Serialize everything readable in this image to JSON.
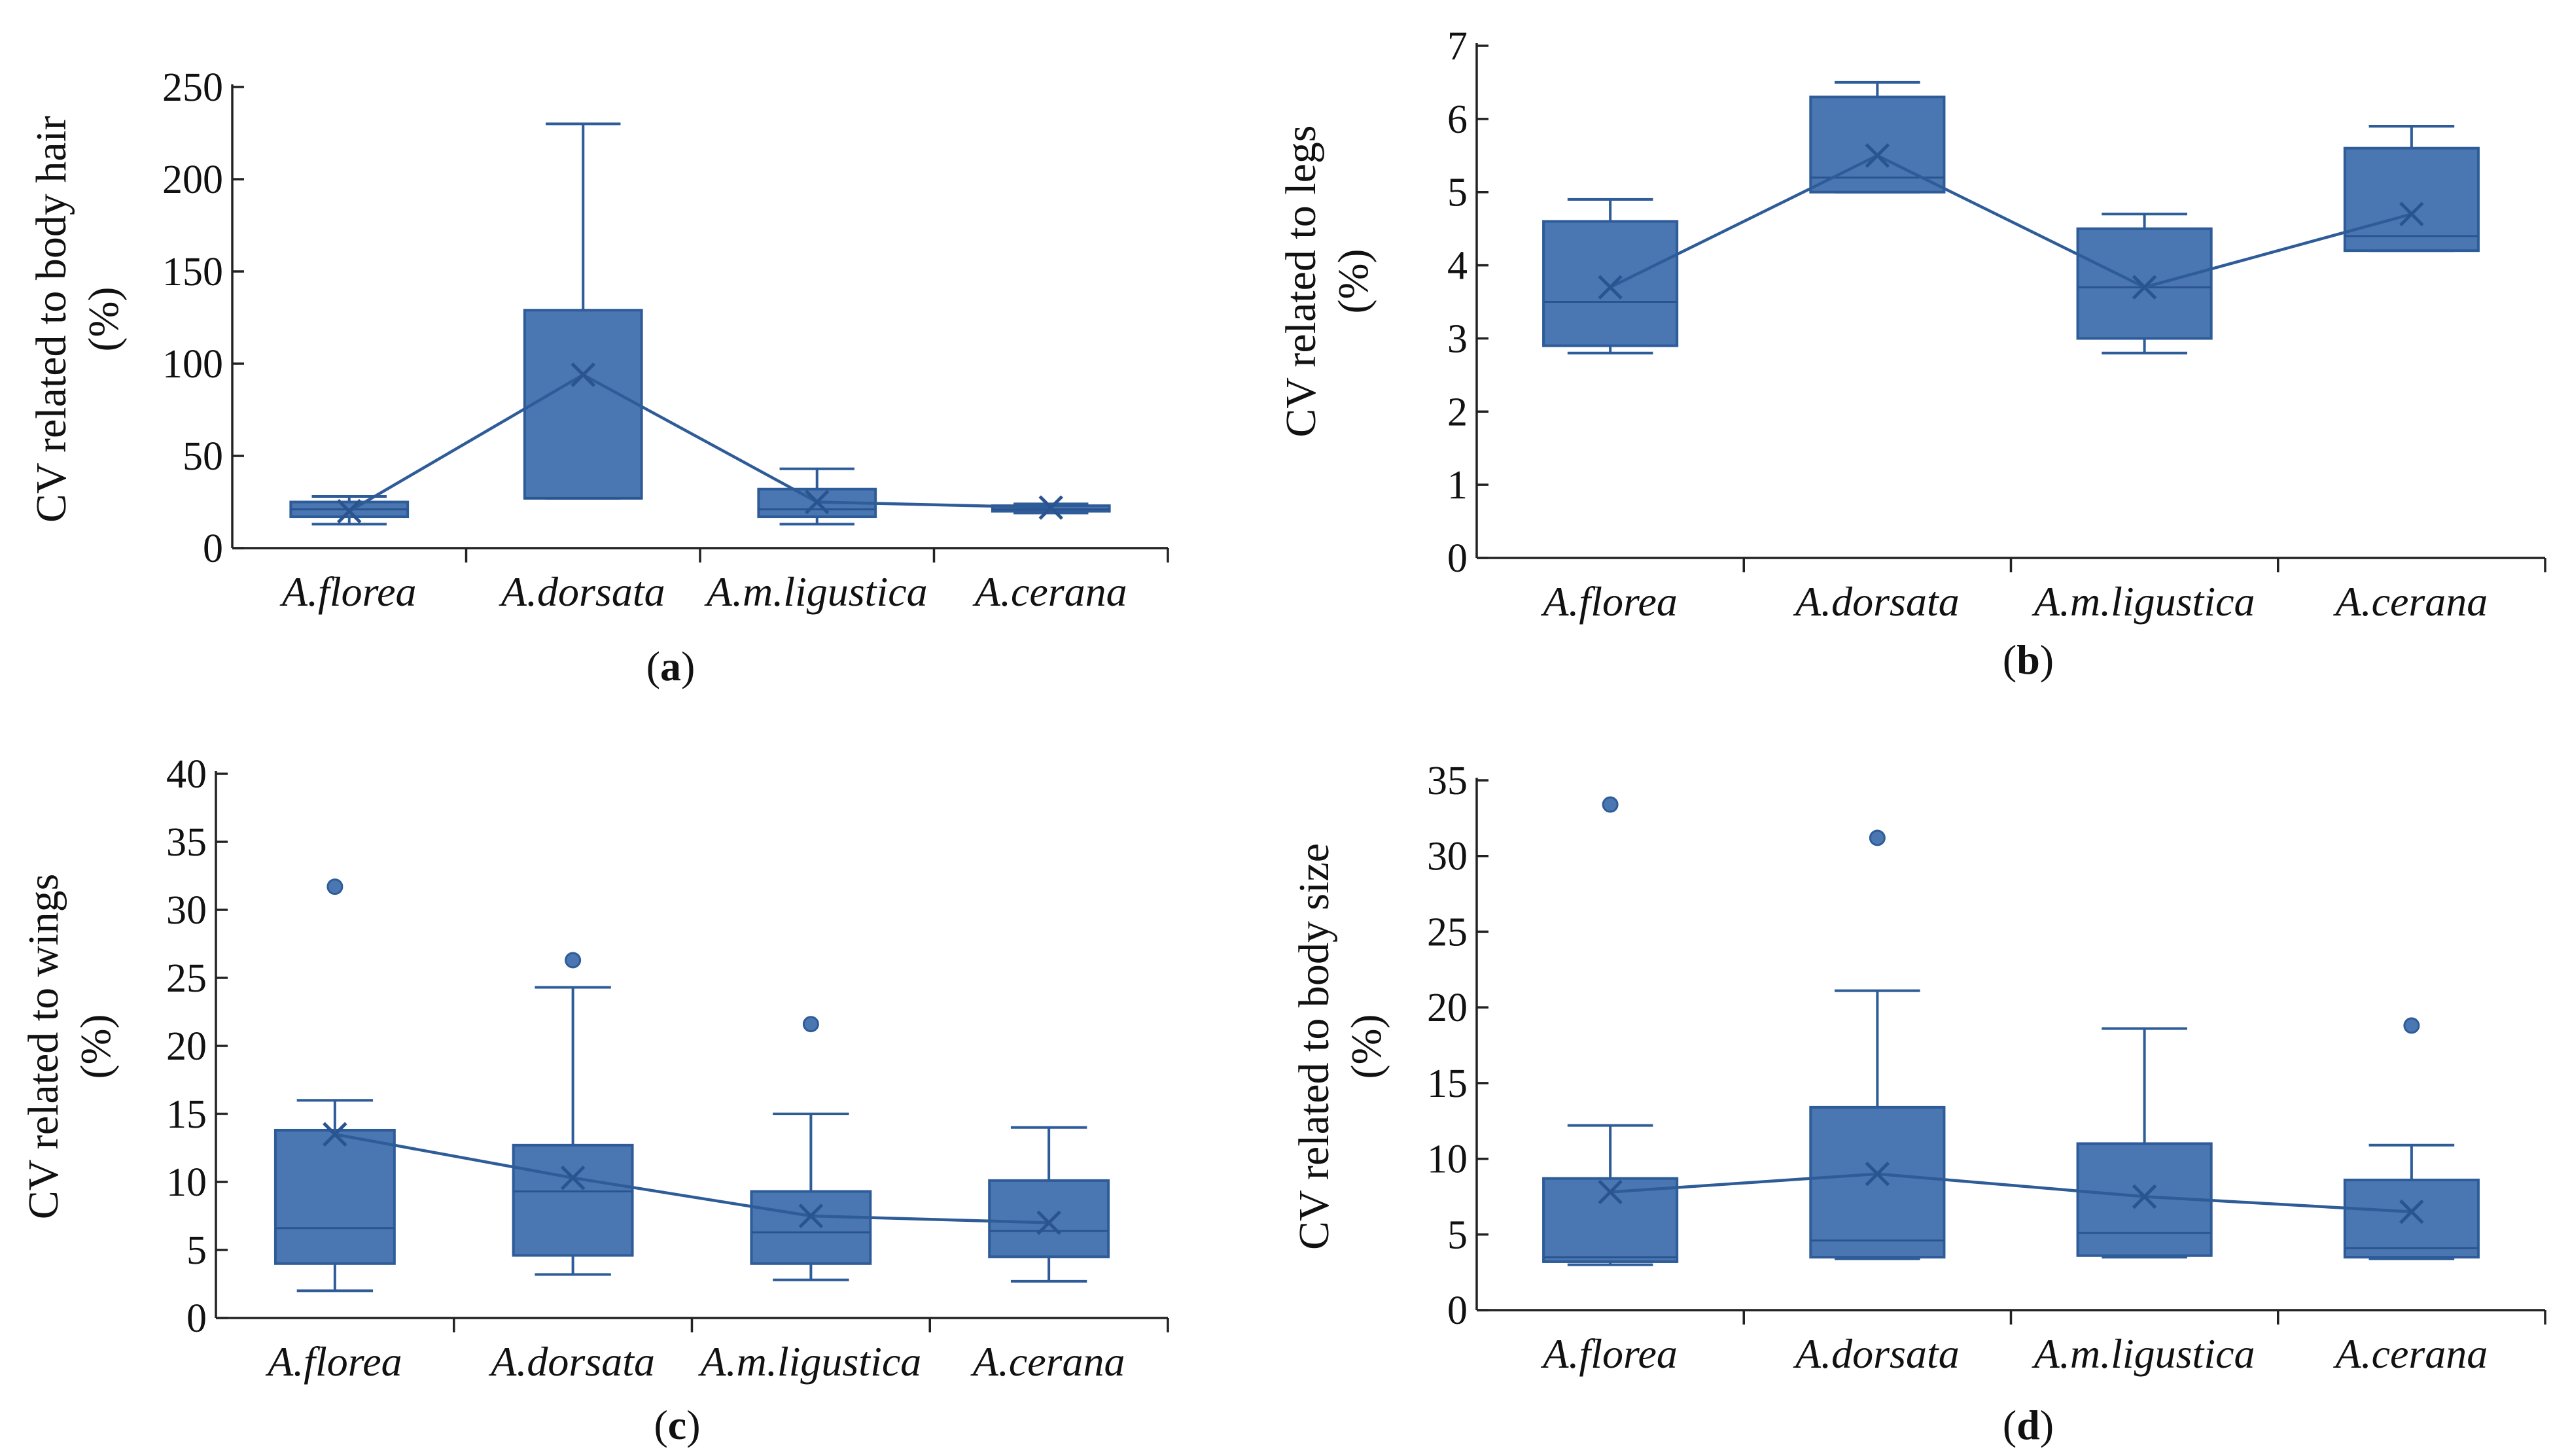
{
  "figure": {
    "accent": "#4a77b2",
    "edge": "#2e5c98"
  },
  "chart_data": [
    {
      "type": "box",
      "panel_label": "a",
      "ylabel": "CV related to body hair",
      "ylabel_unit": "(%)",
      "ylim": [
        0,
        250
      ],
      "yticks": [
        "0",
        "50",
        "100",
        "150",
        "200",
        "250"
      ],
      "categories": [
        "A.florea",
        "A.dorsata",
        "A.m.ligustica",
        "A.cerana"
      ],
      "boxes": [
        {
          "min": 13,
          "q1": 17,
          "median": 21,
          "q3": 25,
          "max": 28,
          "mean": 20,
          "outliers": []
        },
        {
          "min": 27,
          "q1": 27,
          "median": 27,
          "q3": 129,
          "max": 230,
          "mean": 94,
          "outliers": []
        },
        {
          "min": 13,
          "q1": 17,
          "median": 21,
          "q3": 32,
          "max": 43,
          "mean": 25,
          "outliers": []
        },
        {
          "min": 19,
          "q1": 20,
          "median": 21,
          "q3": 23,
          "max": 24,
          "mean": 22,
          "outliers": []
        }
      ]
    },
    {
      "type": "box",
      "panel_label": "b",
      "ylabel": "CV related to legs",
      "ylabel_unit": "(%)",
      "ylim": [
        0,
        7
      ],
      "yticks": [
        "0",
        "1",
        "2",
        "3",
        "4",
        "5",
        "6",
        "7"
      ],
      "categories": [
        "A.florea",
        "A.dorsata",
        "A.m.ligustica",
        "A.cerana"
      ],
      "boxes": [
        {
          "min": 2.8,
          "q1": 2.9,
          "median": 3.5,
          "q3": 4.6,
          "max": 4.9,
          "mean": 3.7,
          "outliers": []
        },
        {
          "min": 5.0,
          "q1": 5.0,
          "median": 5.2,
          "q3": 6.3,
          "max": 6.5,
          "mean": 5.5,
          "outliers": []
        },
        {
          "min": 2.8,
          "q1": 3.0,
          "median": 3.7,
          "q3": 4.5,
          "max": 4.7,
          "mean": 3.7,
          "outliers": []
        },
        {
          "min": 4.2,
          "q1": 4.2,
          "median": 4.4,
          "q3": 5.6,
          "max": 5.9,
          "mean": 4.7,
          "outliers": []
        }
      ]
    },
    {
      "type": "box",
      "panel_label": "c",
      "ylabel": "CV related to wings",
      "ylabel_unit": "(%)",
      "ylim": [
        0,
        40
      ],
      "yticks": [
        "0",
        "5",
        "10",
        "15",
        "20",
        "25",
        "30",
        "35",
        "40"
      ],
      "categories": [
        "A.florea",
        "A.dorsata",
        "A.m.ligustica",
        "A.cerana"
      ],
      "boxes": [
        {
          "min": 2.0,
          "q1": 4.0,
          "median": 6.6,
          "q3": 13.8,
          "max": 16.0,
          "mean": 13.5,
          "outliers": [
            31.7
          ]
        },
        {
          "min": 3.2,
          "q1": 4.6,
          "median": 9.3,
          "q3": 12.7,
          "max": 24.3,
          "mean": 10.3,
          "outliers": [
            26.3
          ]
        },
        {
          "min": 2.8,
          "q1": 4.0,
          "median": 6.3,
          "q3": 9.3,
          "max": 15.0,
          "mean": 7.5,
          "outliers": [
            21.6
          ]
        },
        {
          "min": 2.7,
          "q1": 4.5,
          "median": 6.4,
          "q3": 10.1,
          "max": 14.0,
          "mean": 7.0,
          "outliers": []
        }
      ]
    },
    {
      "type": "box",
      "panel_label": "d",
      "ylabel": "CV related to body size",
      "ylabel_unit": "(%)",
      "ylim": [
        0,
        35
      ],
      "yticks": [
        "0",
        "5",
        "10",
        "15",
        "20",
        "25",
        "30",
        "35"
      ],
      "categories": [
        "A.florea",
        "A.dorsata",
        "A.m.ligustica",
        "A.cerana"
      ],
      "boxes": [
        {
          "min": 3.0,
          "q1": 3.2,
          "median": 3.5,
          "q3": 8.7,
          "max": 12.2,
          "mean": 7.8,
          "outliers": [
            33.4
          ]
        },
        {
          "min": 3.4,
          "q1": 3.5,
          "median": 4.6,
          "q3": 13.4,
          "max": 21.1,
          "mean": 9.0,
          "outliers": [
            31.2
          ]
        },
        {
          "min": 3.5,
          "q1": 3.6,
          "median": 5.1,
          "q3": 11.0,
          "max": 18.6,
          "mean": 7.5,
          "outliers": []
        },
        {
          "min": 3.4,
          "q1": 3.5,
          "median": 4.1,
          "q3": 8.6,
          "max": 10.9,
          "mean": 6.5,
          "outliers": [
            18.8
          ]
        }
      ]
    }
  ]
}
